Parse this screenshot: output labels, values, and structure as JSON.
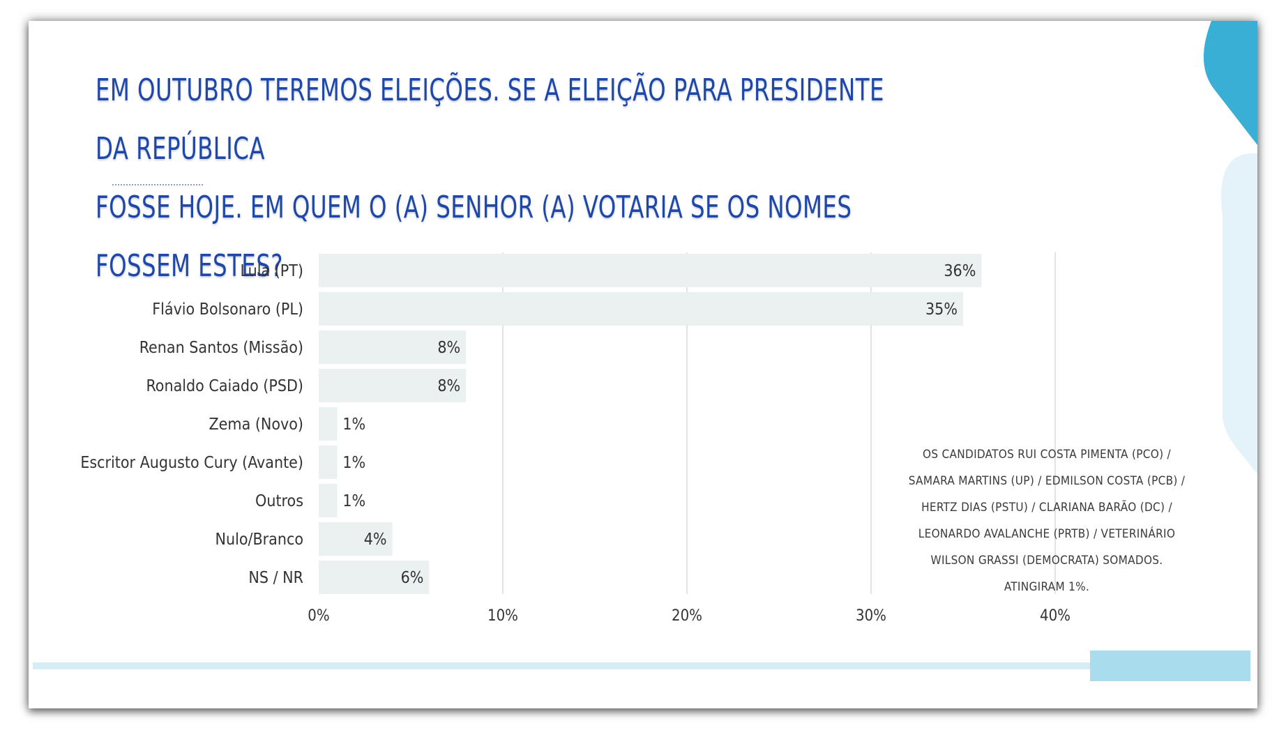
{
  "title_lines": [
    "EM OUTUBRO TEREMOS ELEIÇÕES. SE A ELEIÇÃO PARA PRESIDENTE DA REPÚBLICA",
    "FOSSE HOJE. EM QUEM O (A) SENHOR (A) VOTARIA SE OS NOMES FOSSEM ESTES?"
  ],
  "footnote": "OS CANDIDATOS RUI COSTA PIMENTA (PCO) / SAMARA MARTINS (UP) / EDMILSON COSTA (PCB) / HERTZ DIAS (PSTU) / CLARIANA BARÃO (DC) / LEONARDO AVALANCHE (PRTB) / VETERINÁRIO WILSON GRASSI (DEMOCRATA) SOMADOS. ATINGIRAM 1%.",
  "colors": {
    "title": "#1f47a8",
    "bar": "#ebf0f0",
    "grid": "#d9d9d9",
    "accent_dark": "#3aafd6",
    "accent_light": "#e3f3f9",
    "band": "#d6edf6",
    "band_block": "#a9dcec"
  },
  "chart_data": {
    "type": "bar",
    "orientation": "horizontal",
    "categories": [
      "Lula (PT)",
      "Flávio Bolsonaro (PL)",
      "Renan Santos (Missão)",
      "Ronaldo Caiado (PSD)",
      "Zema (Novo)",
      "Escritor Augusto Cury (Avante)",
      "Outros",
      "Nulo/Branco",
      "NS / NR"
    ],
    "values": [
      36,
      35,
      8,
      8,
      1,
      1,
      1,
      4,
      6
    ],
    "value_labels": [
      "36%",
      "35%",
      "8%",
      "8%",
      "1%",
      "1%",
      "1%",
      "4%",
      "6%"
    ],
    "xlim": [
      0,
      40
    ],
    "xticks": [
      0,
      10,
      20,
      30,
      40
    ],
    "xtick_labels": [
      "0%",
      "10%",
      "20%",
      "30%",
      "40%"
    ],
    "grid": true,
    "legend": "none"
  }
}
